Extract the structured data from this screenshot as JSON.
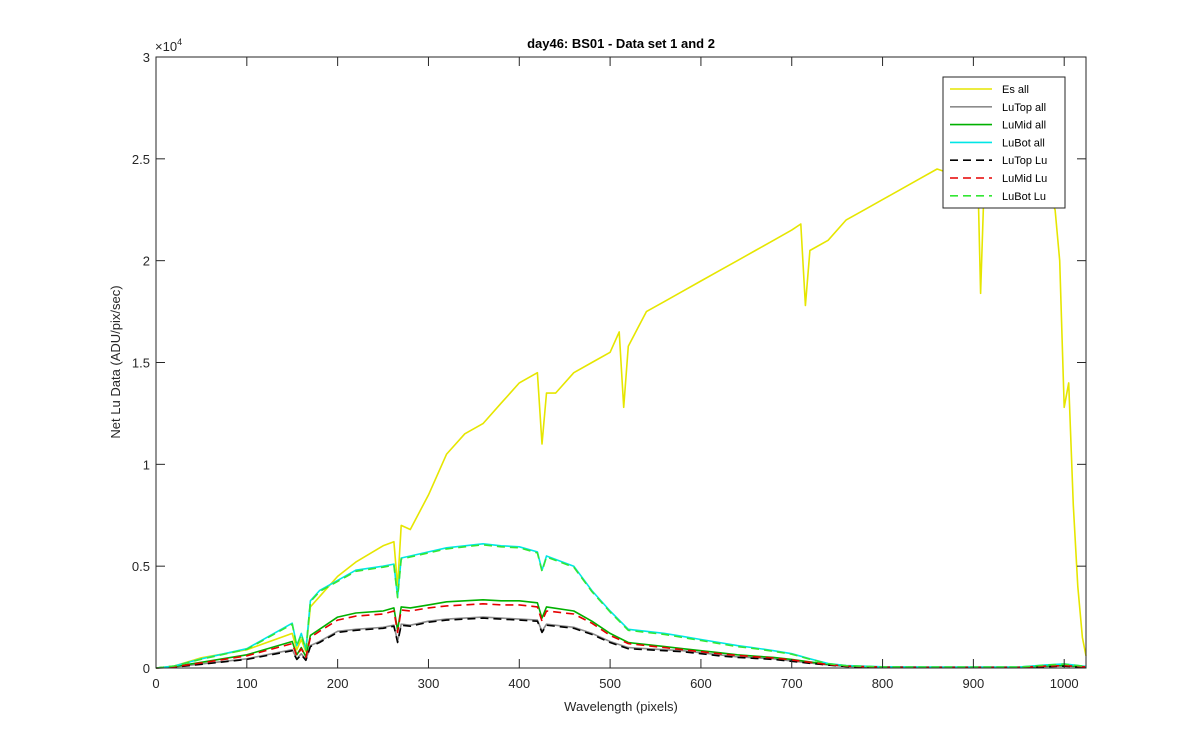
{
  "chart_data": {
    "type": "line",
    "title": "day46: BS01 - Data set 1 and 2",
    "xlabel": "Wavelength (pixels)",
    "ylabel": "Net Lu Data (ADU/pix/sec)",
    "xlim": [
      0,
      1024
    ],
    "ylim": [
      0,
      30000
    ],
    "x_ticks": [
      0,
      100,
      200,
      300,
      400,
      500,
      600,
      700,
      800,
      900,
      1000
    ],
    "x_tick_labels": [
      "0",
      "100",
      "200",
      "300",
      "400",
      "500",
      "600",
      "700",
      "800",
      "900",
      "1000"
    ],
    "y_ticks": [
      0,
      5000,
      10000,
      15000,
      20000,
      25000,
      30000
    ],
    "y_tick_labels": [
      "0",
      "0.5",
      "1",
      "1.5",
      "2",
      "2.5",
      "3"
    ],
    "y_exponent_label": "×10",
    "y_exponent_power": "4",
    "grid": false,
    "legend_position": "top-right",
    "series": [
      {
        "name": "Es  all",
        "color": "#e6e600",
        "dash": "solid",
        "x": [
          0,
          20,
          50,
          100,
          150,
          155,
          160,
          165,
          170,
          180,
          200,
          220,
          250,
          262,
          266,
          270,
          280,
          300,
          320,
          340,
          360,
          380,
          400,
          420,
          425,
          430,
          440,
          460,
          480,
          500,
          510,
          515,
          520,
          540,
          560,
          580,
          600,
          620,
          640,
          660,
          680,
          700,
          710,
          715,
          720,
          740,
          760,
          780,
          800,
          820,
          840,
          860,
          880,
          900,
          905,
          908,
          912,
          920,
          940,
          960,
          980,
          990,
          995,
          1000,
          1005,
          1010,
          1015,
          1020,
          1024
        ],
        "y": [
          0,
          100,
          500,
          900,
          1700,
          900,
          1400,
          800,
          3000,
          3500,
          4500,
          5200,
          6000,
          6200,
          4000,
          7000,
          6800,
          8500,
          10500,
          11500,
          12000,
          13000,
          14000,
          14500,
          11000,
          13500,
          13500,
          14500,
          15000,
          15500,
          16500,
          12800,
          15800,
          17500,
          18000,
          18500,
          19000,
          19500,
          20000,
          20500,
          21000,
          21500,
          21800,
          17800,
          20500,
          21000,
          22000,
          22500,
          23000,
          23500,
          24000,
          24500,
          24200,
          24500,
          24000,
          18400,
          24000,
          24500,
          24500,
          24000,
          23500,
          22500,
          20000,
          12800,
          14000,
          8000,
          4000,
          1500,
          600
        ]
      },
      {
        "name": "LuTop  all",
        "color": "#8c8c8c",
        "dash": "solid",
        "x": [
          0,
          20,
          50,
          100,
          150,
          155,
          160,
          165,
          170,
          180,
          200,
          220,
          250,
          262,
          266,
          270,
          280,
          300,
          320,
          340,
          360,
          380,
          400,
          420,
          425,
          430,
          460,
          480,
          500,
          520,
          540,
          560,
          580,
          600,
          620,
          640,
          660,
          680,
          700,
          720,
          740,
          760,
          800,
          850,
          900,
          950,
          980,
          1000,
          1024
        ],
        "y": [
          0,
          50,
          200,
          450,
          900,
          450,
          700,
          400,
          1100,
          1300,
          1800,
          1900,
          2000,
          2100,
          1300,
          2150,
          2100,
          2300,
          2400,
          2450,
          2500,
          2450,
          2400,
          2350,
          1800,
          2150,
          2000,
          1700,
          1300,
          1000,
          950,
          900,
          850,
          750,
          650,
          550,
          500,
          450,
          350,
          250,
          150,
          80,
          40,
          30,
          30,
          30,
          80,
          100,
          50
        ]
      },
      {
        "name": "LuMid  all",
        "color": "#00b000",
        "dash": "solid",
        "x": [
          0,
          20,
          50,
          100,
          150,
          155,
          160,
          165,
          170,
          180,
          200,
          220,
          250,
          262,
          266,
          270,
          280,
          300,
          320,
          340,
          360,
          380,
          400,
          420,
          425,
          430,
          460,
          480,
          500,
          520,
          540,
          560,
          580,
          600,
          620,
          640,
          660,
          680,
          700,
          720,
          740,
          760,
          800,
          850,
          900,
          950,
          980,
          1000,
          1024
        ],
        "y": [
          0,
          70,
          280,
          650,
          1300,
          650,
          1000,
          550,
          1600,
          1900,
          2500,
          2700,
          2800,
          2950,
          1850,
          3000,
          2950,
          3100,
          3250,
          3300,
          3350,
          3300,
          3300,
          3200,
          2450,
          3000,
          2800,
          2300,
          1700,
          1250,
          1150,
          1050,
          950,
          850,
          750,
          650,
          580,
          520,
          420,
          300,
          180,
          100,
          50,
          40,
          40,
          40,
          100,
          130,
          60
        ]
      },
      {
        "name": "LuBot  all",
        "color": "#00e6e6",
        "dash": "solid",
        "x": [
          0,
          20,
          50,
          100,
          150,
          155,
          160,
          165,
          170,
          180,
          200,
          220,
          250,
          262,
          266,
          270,
          280,
          300,
          320,
          340,
          360,
          380,
          400,
          420,
          425,
          430,
          460,
          480,
          500,
          520,
          540,
          560,
          580,
          600,
          620,
          640,
          660,
          680,
          700,
          720,
          740,
          760,
          800,
          850,
          900,
          950,
          980,
          1000,
          1024
        ],
        "y": [
          0,
          100,
          450,
          950,
          2200,
          1100,
          1700,
          900,
          3300,
          3800,
          4300,
          4800,
          5000,
          5100,
          3500,
          5400,
          5500,
          5700,
          5900,
          6000,
          6100,
          6000,
          5950,
          5700,
          4800,
          5500,
          5000,
          3800,
          2800,
          1900,
          1800,
          1700,
          1550,
          1400,
          1250,
          1100,
          980,
          850,
          700,
          450,
          220,
          120,
          60,
          50,
          50,
          50,
          150,
          200,
          80
        ]
      },
      {
        "name": "LuTop  Lu",
        "color": "#000000",
        "dash": "8,5",
        "x": [
          0,
          20,
          50,
          100,
          150,
          155,
          160,
          165,
          170,
          180,
          200,
          220,
          250,
          262,
          266,
          270,
          280,
          300,
          320,
          340,
          360,
          380,
          400,
          420,
          425,
          430,
          460,
          480,
          500,
          520,
          540,
          560,
          580,
          600,
          620,
          640,
          660,
          680,
          700,
          720,
          740,
          760,
          800,
          850,
          900,
          950,
          980,
          1000,
          1024
        ],
        "y": [
          0,
          40,
          180,
          420,
          850,
          420,
          650,
          380,
          1050,
          1250,
          1750,
          1850,
          1950,
          2050,
          1250,
          2100,
          2050,
          2250,
          2350,
          2400,
          2450,
          2400,
          2350,
          2300,
          1750,
          2100,
          1950,
          1650,
          1250,
          950,
          900,
          850,
          800,
          700,
          600,
          520,
          470,
          420,
          330,
          230,
          140,
          75,
          35,
          25,
          25,
          25,
          70,
          90,
          45
        ]
      },
      {
        "name": "LuMid  Lu",
        "color": "#e60000",
        "dash": "8,5",
        "x": [
          0,
          20,
          50,
          100,
          150,
          155,
          160,
          165,
          170,
          180,
          200,
          220,
          250,
          262,
          266,
          270,
          280,
          300,
          320,
          340,
          360,
          380,
          400,
          420,
          425,
          430,
          460,
          480,
          500,
          520,
          540,
          560,
          580,
          600,
          620,
          640,
          660,
          680,
          700,
          720,
          740,
          760,
          800,
          850,
          900,
          950,
          980,
          1000,
          1024
        ],
        "y": [
          0,
          60,
          250,
          600,
          1200,
          600,
          950,
          520,
          1500,
          1800,
          2350,
          2550,
          2650,
          2800,
          1750,
          2850,
          2800,
          2950,
          3050,
          3100,
          3150,
          3100,
          3100,
          3000,
          2300,
          2800,
          2650,
          2200,
          1600,
          1200,
          1100,
          1000,
          900,
          800,
          700,
          620,
          550,
          490,
          400,
          280,
          170,
          95,
          45,
          35,
          35,
          35,
          95,
          120,
          55
        ]
      },
      {
        "name": "LuBot  Lu",
        "color": "#33e633",
        "dash": "8,5",
        "x": [
          0,
          20,
          50,
          100,
          150,
          155,
          160,
          165,
          170,
          180,
          200,
          220,
          250,
          262,
          266,
          270,
          280,
          300,
          320,
          340,
          360,
          380,
          400,
          420,
          425,
          430,
          460,
          480,
          500,
          520,
          540,
          560,
          580,
          600,
          620,
          640,
          660,
          680,
          700,
          720,
          740,
          760,
          800,
          850,
          900,
          950,
          980,
          1000,
          1024
        ],
        "y": [
          0,
          100,
          430,
          920,
          2150,
          1080,
          1650,
          880,
          3250,
          3750,
          4250,
          4750,
          4950,
          5050,
          3450,
          5350,
          5450,
          5650,
          5850,
          5950,
          6050,
          5950,
          5900,
          5650,
          4750,
          5450,
          4950,
          3750,
          2750,
          1850,
          1750,
          1650,
          1500,
          1350,
          1200,
          1050,
          950,
          820,
          680,
          430,
          210,
          115,
          55,
          45,
          45,
          45,
          140,
          190,
          75
        ]
      }
    ]
  }
}
